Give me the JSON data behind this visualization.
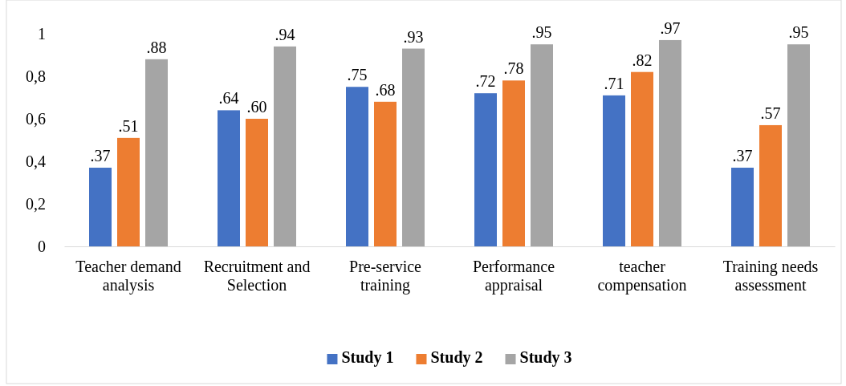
{
  "chart_data": {
    "type": "bar",
    "categories": [
      "Teacher demand analysis",
      "Recruitment and Selection",
      "Pre-service training",
      "Performance appraisal",
      "teacher compensation",
      "Training needs assessment"
    ],
    "series": [
      {
        "name": "Study 1",
        "color": "#4472c4",
        "values": [
          0.37,
          0.64,
          0.75,
          0.72,
          0.71,
          0.37
        ],
        "value_labels": [
          ".37",
          ".64",
          ".75",
          ".72",
          ".71",
          ".37"
        ]
      },
      {
        "name": "Study 2",
        "color": "#ed7d31",
        "values": [
          0.51,
          0.6,
          0.68,
          0.78,
          0.82,
          0.57
        ],
        "value_labels": [
          ".51",
          ".60",
          ".68",
          ".78",
          ".82",
          ".57"
        ]
      },
      {
        "name": "Study 3",
        "color": "#a5a5a5",
        "values": [
          0.88,
          0.94,
          0.93,
          0.95,
          0.97,
          0.95
        ],
        "value_labels": [
          ".88",
          ".94",
          ".93",
          ".95",
          ".97",
          ".95"
        ]
      }
    ],
    "ylim": [
      0,
      1
    ],
    "yticks": [
      0,
      {
        "value": 0.2,
        "label": "0,2"
      },
      {
        "value": 0.4,
        "label": "0,4"
      },
      {
        "value": 0.6,
        "label": "0,6"
      },
      {
        "value": 0.8,
        "label": "0,8"
      },
      1
    ],
    "grid": false,
    "legend": "bottom"
  }
}
